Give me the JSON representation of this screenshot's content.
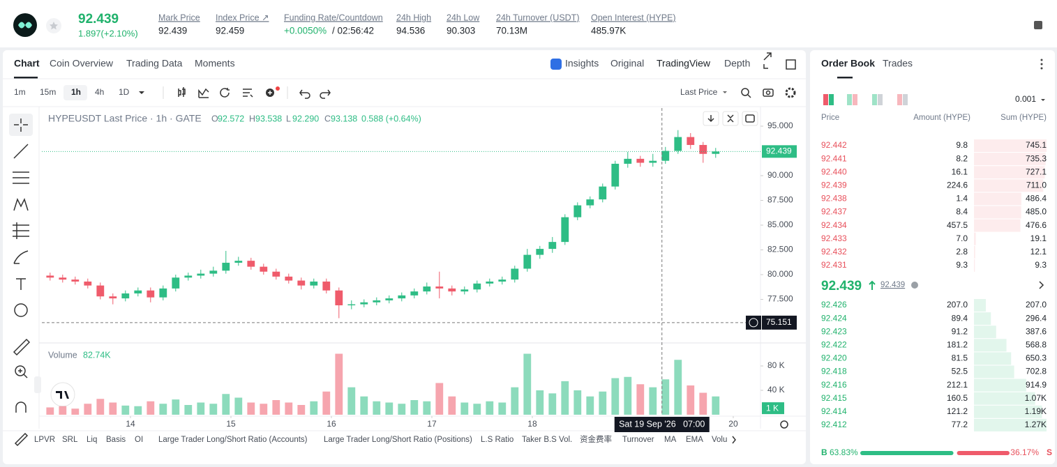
{
  "header": {
    "price": "92.439",
    "change": "1.897(+2.10%)",
    "stats": [
      {
        "label": "Mark Price",
        "value": "92.439"
      },
      {
        "label": "Index Price ↗",
        "value": "92.459"
      },
      {
        "label": "Funding Rate/Countdown",
        "value": "+0.0050%",
        "value_color": "#20b26c",
        "countdown": "/ 02:56:42"
      },
      {
        "label": "24h High",
        "value": "94.536"
      },
      {
        "label": "24h Low",
        "value": "90.303"
      },
      {
        "label": "24h Turnover (USDT)",
        "value": "70.13M"
      },
      {
        "label": "Open Interest (HYPE)",
        "value": "485.97K"
      }
    ]
  },
  "chart_tabs": [
    "Chart",
    "Coin Overview",
    "Trading Data",
    "Moments"
  ],
  "view_tabs": [
    "Insights",
    "Original",
    "TradingView",
    "Depth"
  ],
  "intervals": [
    "1m",
    "15m",
    "1h",
    "4h",
    "1D"
  ],
  "price_source": "Last Price",
  "legend": {
    "symbol": "HYPEUSDT Last Price · 1h · GATE",
    "ohlc": [
      {
        "key": "O",
        "value": "92.572"
      },
      {
        "key": "H",
        "value": "93.538"
      },
      {
        "key": "L",
        "value": "92.290"
      },
      {
        "key": "C",
        "value": "93.138"
      }
    ],
    "change": "0.588 (+0.64%)"
  },
  "volume_legend": {
    "label": "Volume",
    "value": "82.74K"
  },
  "chart_data": {
    "type": "candlestick",
    "x": [
      13.2,
      13.325,
      13.45,
      13.575,
      13.7,
      13.825,
      13.95,
      14.075,
      14.2,
      14.325,
      14.45,
      14.575,
      14.7,
      14.825,
      14.95,
      15.075,
      15.2,
      15.325,
      15.45,
      15.575,
      15.7,
      15.825,
      15.95,
      16.075,
      16.2,
      16.325,
      16.45,
      16.575,
      16.7,
      16.825,
      16.95,
      17.075,
      17.2,
      17.325,
      17.45,
      17.575,
      17.7,
      17.825,
      17.95,
      18.075,
      18.2,
      18.325,
      18.45,
      18.575,
      18.7,
      18.825,
      18.95,
      19.075,
      19.2,
      19.325,
      19.45,
      19.575,
      19.7,
      19.825
    ],
    "open": [
      79.9,
      79.7,
      79.5,
      79.3,
      78.9,
      77.8,
      77.6,
      78.1,
      78.4,
      77.7,
      78.6,
      79.7,
      79.9,
      80.1,
      80.4,
      81.2,
      81.4,
      80.8,
      80.3,
      79.8,
      79.4,
      78.9,
      79.3,
      78.4,
      76.9,
      77.0,
      77.2,
      77.4,
      77.6,
      77.9,
      78.3,
      78.8,
      78.6,
      78.3,
      78.5,
      79.1,
      79.3,
      79.5,
      80.6,
      82.0,
      82.6,
      83.3,
      85.8,
      87.0,
      87.6,
      88.9,
      91.2,
      91.7,
      91.3,
      91.5,
      92.5,
      93.9,
      93.1,
      92.2
    ],
    "high": [
      80.2,
      80.0,
      79.8,
      79.6,
      79.2,
      78.1,
      78.4,
      78.7,
      78.7,
      78.9,
      80.0,
      80.2,
      80.5,
      80.8,
      82.4,
      81.8,
      81.7,
      81.1,
      80.6,
      80.1,
      79.7,
      79.6,
      79.6,
      78.7,
      77.4,
      77.5,
      77.7,
      77.9,
      78.2,
      78.6,
      79.2,
      80.3,
      78.9,
      78.8,
      79.4,
      79.6,
      79.8,
      80.9,
      82.6,
      82.9,
      83.8,
      86.1,
      87.3,
      87.9,
      89.2,
      91.5,
      92.4,
      92.0,
      92.2,
      92.9,
      94.6,
      94.3,
      93.4,
      92.8
    ],
    "low": [
      79.4,
      79.2,
      79.0,
      78.6,
      77.5,
      77.0,
      77.3,
      77.8,
      77.2,
      77.4,
      78.3,
      79.4,
      79.6,
      79.8,
      80.1,
      80.9,
      80.5,
      80.0,
      79.5,
      79.1,
      78.5,
      78.6,
      78.1,
      75.6,
      76.5,
      76.7,
      76.9,
      77.1,
      77.3,
      77.6,
      78.0,
      77.6,
      77.9,
      78.0,
      78.2,
      78.8,
      79.0,
      79.2,
      80.3,
      81.6,
      82.2,
      83.0,
      85.5,
      86.7,
      87.3,
      88.6,
      90.8,
      90.9,
      90.9,
      91.2,
      92.2,
      92.7,
      91.3,
      91.8
    ],
    "close": [
      79.7,
      79.5,
      79.3,
      78.9,
      77.8,
      77.6,
      78.1,
      78.4,
      77.7,
      78.6,
      79.7,
      79.9,
      80.1,
      80.4,
      81.2,
      81.4,
      80.8,
      80.3,
      79.8,
      79.4,
      78.9,
      79.3,
      78.4,
      76.9,
      77.0,
      77.2,
      77.4,
      77.6,
      77.9,
      78.3,
      78.8,
      78.6,
      78.3,
      78.5,
      79.1,
      79.3,
      79.5,
      80.6,
      82.0,
      82.6,
      83.3,
      85.8,
      87.0,
      87.6,
      88.9,
      91.2,
      91.7,
      91.3,
      91.5,
      92.5,
      93.9,
      93.1,
      92.2,
      92.439
    ],
    "volume": [
      12,
      14,
      10,
      18,
      26,
      20,
      15,
      14,
      22,
      18,
      25,
      16,
      20,
      18,
      34,
      28,
      20,
      18,
      24,
      20,
      16,
      22,
      38,
      100,
      45,
      30,
      22,
      20,
      18,
      24,
      22,
      52,
      30,
      20,
      18,
      22,
      20,
      45,
      100,
      40,
      35,
      55,
      40,
      30,
      38,
      60,
      62,
      50,
      45,
      58,
      90,
      48,
      36,
      30
    ],
    "up_color": "#2ebd85",
    "down_color": "#ef5b6b",
    "xlim": [
      13.118,
      20.271
    ],
    "xticks": [
      14,
      15,
      16,
      17,
      18,
      20
    ],
    "ylim": [
      73.24,
      96.83
    ],
    "yticks": [
      {
        "value": 77.5,
        "label": "77.500"
      },
      {
        "value": 80,
        "label": "80.000"
      },
      {
        "value": 82.5,
        "label": "82.500"
      },
      {
        "value": 85,
        "label": "85.000"
      },
      {
        "value": 87.5,
        "label": "87.500"
      },
      {
        "value": 90,
        "label": "90.000"
      },
      {
        "value": 95,
        "label": "95.000"
      }
    ],
    "y2lim": [
      0,
      112
    ],
    "y2ticks": [
      {
        "value": 40,
        "label": "40 K"
      },
      {
        "value": 80,
        "label": "80 K"
      }
    ],
    "last_price": {
      "value": 92.439,
      "label": "92.439"
    },
    "last_volume": {
      "value": 1,
      "label": "1 K"
    },
    "crosshair": {
      "x": 19.29,
      "price": {
        "value": 75.151,
        "label": "75.151"
      },
      "time_label": "Sat 19 Sep '26   07:00"
    }
  },
  "indicators": [
    "LPVR",
    "SRL",
    "Liq",
    "Basis",
    "OI",
    "Large Trader Long/Short Ratio (Accounts)",
    "Large Trader Long/Short Ratio (Positions)",
    "L.S Ratio",
    "Taker B.S Vol.",
    "资金费率",
    "Turnover",
    "MA",
    "EMA",
    "Volu"
  ],
  "order_book": {
    "tabs": [
      "Order Book",
      "Trades"
    ],
    "precision": "0.001",
    "headers": [
      "Price",
      "Amount (HYPE)",
      "Sum (HYPE)"
    ],
    "asks": [
      {
        "price": "92.442",
        "amount": "9.8",
        "sum": 745.1
      },
      {
        "price": "92.441",
        "amount": "8.2",
        "sum": 735.3
      },
      {
        "price": "92.440",
        "amount": "16.1",
        "sum": 727.1
      },
      {
        "price": "92.439",
        "amount": "224.6",
        "sum": {
          "value": 711,
          "label": "711.0"
        }
      },
      {
        "price": "92.438",
        "amount": "1.4",
        "sum": 486.4
      },
      {
        "price": "92.437",
        "amount": "8.4",
        "sum": {
          "value": 485,
          "label": "485.0"
        }
      },
      {
        "price": "92.434",
        "amount": "457.5",
        "sum": 476.6
      },
      {
        "price": "92.433",
        "amount": "7.0",
        "sum": 19.1
      },
      {
        "price": "92.432",
        "amount": "2.8",
        "sum": 12.1
      },
      {
        "price": "92.431",
        "amount": "9.3",
        "sum": 9.3
      }
    ],
    "mid_price": "92.439",
    "mark_price": "92.439",
    "bids": [
      {
        "price": "92.426",
        "amount": "207.0",
        "sum": {
          "value": 207,
          "label": "207.0"
        }
      },
      {
        "price": "92.424",
        "amount": "89.4",
        "sum": 296.4
      },
      {
        "price": "92.423",
        "amount": "91.2",
        "sum": 387.6
      },
      {
        "price": "92.422",
        "amount": "181.2",
        "sum": 568.8
      },
      {
        "price": "92.420",
        "amount": "81.5",
        "sum": 650.3
      },
      {
        "price": "92.418",
        "amount": "52.5",
        "sum": 702.8
      },
      {
        "price": "92.416",
        "amount": "212.1",
        "sum": 914.9
      },
      {
        "price": "92.415",
        "amount": "160.5",
        "sum": {
          "value": 1070,
          "label": "1.07K"
        }
      },
      {
        "price": "92.414",
        "amount": "121.2",
        "sum": {
          "value": 1190,
          "label": "1.19K"
        }
      },
      {
        "price": "92.412",
        "amount": "77.2",
        "sum": {
          "value": 1270,
          "label": "1.27K"
        }
      }
    ],
    "buy_label": "B",
    "buy_ratio": {
      "value": 63.83,
      "label": "63.83%"
    },
    "sell_ratio": {
      "value": 36.17,
      "label": "36.17%"
    },
    "sell_label": "S"
  }
}
